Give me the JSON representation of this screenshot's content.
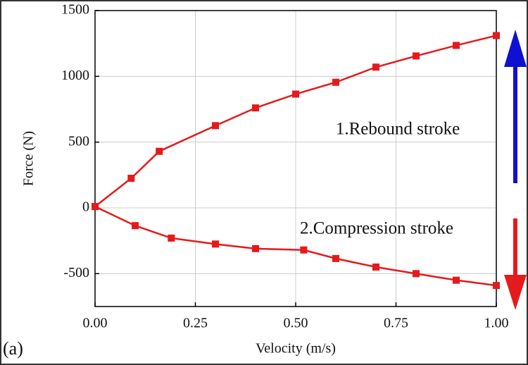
{
  "chart_data": {
    "type": "line",
    "x_label": "Velocity (m/s)",
    "y_label": "Force (N)",
    "panel_label": "(a)",
    "xlim": [
      0,
      1
    ],
    "ylim": [
      -750,
      1500
    ],
    "xticks": [
      {
        "value": 0,
        "label": "0.00"
      },
      {
        "value": 0.25,
        "label": "0.25"
      },
      {
        "value": 0.5,
        "label": "0.50"
      },
      {
        "value": 0.75,
        "label": "0.75"
      },
      {
        "value": 1,
        "label": "1.00"
      }
    ],
    "yticks": [
      -500,
      0,
      500,
      1000,
      1500
    ],
    "grid": true,
    "series": [
      {
        "name": "1.Rebound stroke",
        "color": "#e41a1c",
        "x": [
          0,
          0.09,
          0.16,
          0.3,
          0.4,
          0.5,
          0.6,
          0.7,
          0.8,
          0.9,
          1.0
        ],
        "values": [
          10,
          225,
          430,
          625,
          760,
          865,
          955,
          1070,
          1155,
          1235,
          1310
        ]
      },
      {
        "name": "2.Compression stroke",
        "color": "#e41a1c",
        "x": [
          0,
          0.1,
          0.19,
          0.3,
          0.4,
          0.52,
          0.6,
          0.7,
          0.8,
          0.9,
          1.0
        ],
        "values": [
          10,
          -135,
          -230,
          -275,
          -310,
          -320,
          -385,
          -450,
          -500,
          -550,
          -590
        ]
      }
    ]
  }
}
